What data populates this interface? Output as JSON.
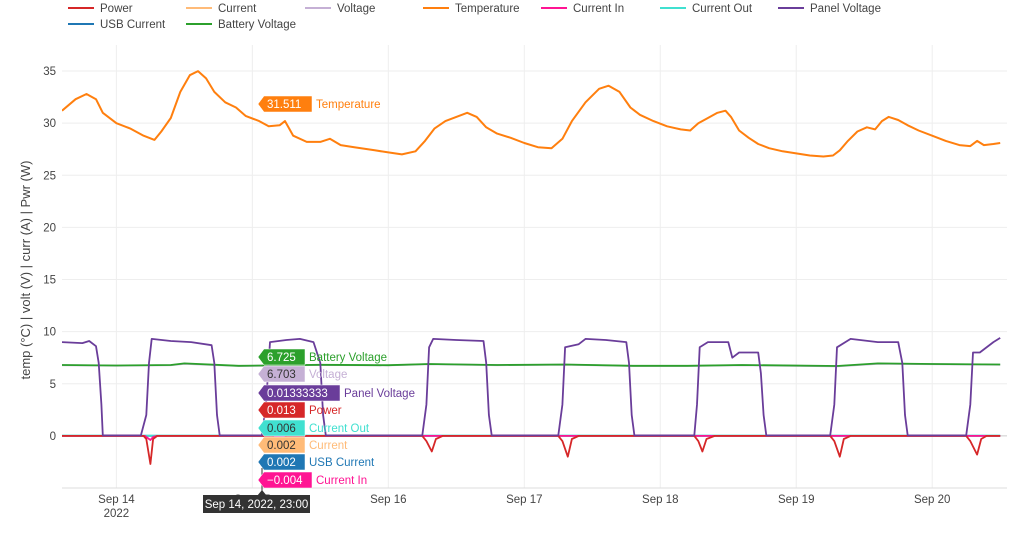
{
  "colors": {
    "power": "#d62728",
    "current": "#ffbb78",
    "voltage": "#c5b0d5",
    "temperature": "#ff7f0e",
    "current_in": "#ff1493",
    "current_out": "#40e0d0",
    "panel_voltage": "#6a3d9a",
    "usb_current": "#1f77b4",
    "battery_voltage": "#2ca02c",
    "grid": "#eeeeee",
    "axis_text": "#444444",
    "tooltip_bg": "#333333"
  },
  "legend": [
    {
      "name": "Power",
      "color": "#d62728"
    },
    {
      "name": "Current",
      "color": "#ffbb78"
    },
    {
      "name": "Voltage",
      "color": "#c5b0d5"
    },
    {
      "name": "Temperature",
      "color": "#ff7f0e"
    },
    {
      "name": "Current In",
      "color": "#ff1493"
    },
    {
      "name": "Current Out",
      "color": "#40e0d0"
    },
    {
      "name": "Panel Voltage",
      "color": "#6a3d9a"
    },
    {
      "name": "USB Current",
      "color": "#1f77b4"
    },
    {
      "name": "Battery Voltage",
      "color": "#2ca02c"
    }
  ],
  "hover": {
    "x_label": "Sep 14, 2022, 23:00",
    "labels": [
      {
        "value": "31.511",
        "name": "Temperature",
        "color": "#ff7f0e",
        "y": 31.511
      },
      {
        "value": "6.725",
        "name": "Battery Voltage",
        "color": "#2ca02c",
        "y": 6.725
      },
      {
        "value": "6.703",
        "name": "Voltage",
        "color": "#c5b0d5",
        "y": 6.703
      },
      {
        "value": "0.01333333",
        "name": "Panel Voltage",
        "color": "#6a3d9a",
        "y": 0.0133
      },
      {
        "value": "0.013",
        "name": "Power",
        "color": "#d62728",
        "y": 0.013
      },
      {
        "value": "0.006",
        "name": "Current Out",
        "color": "#40e0d0",
        "y": 0.006
      },
      {
        "value": "0.002",
        "name": "Current",
        "color": "#ffbb78",
        "y": 0.002
      },
      {
        "value": "0.002",
        "name": "USB Current",
        "color": "#1f77b4",
        "y": 0.002
      },
      {
        "value": "−0.004",
        "name": "Current In",
        "color": "#ff1493",
        "y": -0.004
      }
    ]
  },
  "chart_data": {
    "type": "line",
    "title": "",
    "ylabel": "temp (°C) | volt (V) | curr (A) | Pwr (W)",
    "xlabel": "",
    "x_unit": "days",
    "xlim": [
      13.6,
      20.55
    ],
    "ylim": [
      -5,
      37.5
    ],
    "y_ticks": [
      0,
      5,
      10,
      15,
      20,
      25,
      30,
      35
    ],
    "x_ticks": [
      {
        "x": 14,
        "label": "Sep 14",
        "sub": "2022"
      },
      {
        "x": 15,
        "label": "Sep 15",
        "sub": ""
      },
      {
        "x": 16,
        "label": "Sep 16",
        "sub": ""
      },
      {
        "x": 17,
        "label": "Sep 17",
        "sub": ""
      },
      {
        "x": 18,
        "label": "Sep 18",
        "sub": ""
      },
      {
        "x": 19,
        "label": "Sep 19",
        "sub": ""
      },
      {
        "x": 20,
        "label": "Sep 20",
        "sub": ""
      }
    ],
    "grid": true,
    "legend_position": "top",
    "series": [
      {
        "name": "Temperature",
        "key": "temperature",
        "points": [
          [
            13.6,
            31.2
          ],
          [
            13.7,
            32.3
          ],
          [
            13.78,
            32.8
          ],
          [
            13.85,
            32.3
          ],
          [
            13.9,
            31.0
          ],
          [
            14.0,
            30.0
          ],
          [
            14.1,
            29.5
          ],
          [
            14.2,
            28.8
          ],
          [
            14.28,
            28.4
          ],
          [
            14.33,
            29.2
          ],
          [
            14.4,
            30.5
          ],
          [
            14.47,
            33.0
          ],
          [
            14.54,
            34.6
          ],
          [
            14.6,
            35.0
          ],
          [
            14.66,
            34.3
          ],
          [
            14.72,
            33.0
          ],
          [
            14.8,
            32.0
          ],
          [
            14.88,
            31.5
          ],
          [
            14.95,
            30.7
          ],
          [
            15.05,
            30.2
          ],
          [
            15.12,
            29.7
          ],
          [
            15.2,
            29.8
          ],
          [
            15.24,
            30.2
          ],
          [
            15.3,
            28.8
          ],
          [
            15.4,
            28.2
          ],
          [
            15.5,
            28.2
          ],
          [
            15.57,
            28.5
          ],
          [
            15.65,
            27.9
          ],
          [
            15.75,
            27.7
          ],
          [
            15.9,
            27.4
          ],
          [
            16.0,
            27.2
          ],
          [
            16.1,
            27.0
          ],
          [
            16.2,
            27.3
          ],
          [
            16.27,
            28.3
          ],
          [
            16.34,
            29.5
          ],
          [
            16.42,
            30.2
          ],
          [
            16.5,
            30.6
          ],
          [
            16.58,
            31.0
          ],
          [
            16.65,
            30.6
          ],
          [
            16.72,
            29.6
          ],
          [
            16.8,
            29.0
          ],
          [
            16.9,
            28.6
          ],
          [
            17.0,
            28.1
          ],
          [
            17.1,
            27.7
          ],
          [
            17.2,
            27.6
          ],
          [
            17.28,
            28.5
          ],
          [
            17.35,
            30.2
          ],
          [
            17.45,
            32.0
          ],
          [
            17.55,
            33.3
          ],
          [
            17.62,
            33.6
          ],
          [
            17.7,
            33.0
          ],
          [
            17.78,
            31.5
          ],
          [
            17.85,
            30.8
          ],
          [
            17.95,
            30.2
          ],
          [
            18.05,
            29.7
          ],
          [
            18.15,
            29.4
          ],
          [
            18.22,
            29.3
          ],
          [
            18.28,
            30.0
          ],
          [
            18.35,
            30.5
          ],
          [
            18.42,
            31.0
          ],
          [
            18.48,
            31.2
          ],
          [
            18.52,
            30.6
          ],
          [
            18.58,
            29.3
          ],
          [
            18.65,
            28.6
          ],
          [
            18.72,
            28.0
          ],
          [
            18.8,
            27.6
          ],
          [
            18.9,
            27.3
          ],
          [
            19.0,
            27.1
          ],
          [
            19.1,
            26.9
          ],
          [
            19.2,
            26.8
          ],
          [
            19.27,
            26.9
          ],
          [
            19.32,
            27.4
          ],
          [
            19.38,
            28.3
          ],
          [
            19.45,
            29.2
          ],
          [
            19.52,
            29.6
          ],
          [
            19.58,
            29.4
          ],
          [
            19.63,
            30.2
          ],
          [
            19.68,
            30.6
          ],
          [
            19.75,
            30.3
          ],
          [
            19.82,
            29.8
          ],
          [
            19.9,
            29.3
          ],
          [
            20.0,
            28.8
          ],
          [
            20.1,
            28.3
          ],
          [
            20.2,
            27.9
          ],
          [
            20.28,
            27.8
          ],
          [
            20.33,
            28.3
          ],
          [
            20.38,
            27.9
          ],
          [
            20.45,
            28.0
          ],
          [
            20.5,
            28.1
          ]
        ]
      },
      {
        "name": "Battery Voltage",
        "key": "battery_voltage",
        "points": [
          [
            13.6,
            6.8
          ],
          [
            14.0,
            6.75
          ],
          [
            14.4,
            6.8
          ],
          [
            14.5,
            6.95
          ],
          [
            14.9,
            6.72
          ],
          [
            15.5,
            6.82
          ],
          [
            16.0,
            6.78
          ],
          [
            16.3,
            6.9
          ],
          [
            16.8,
            6.8
          ],
          [
            17.3,
            6.85
          ],
          [
            17.8,
            6.72
          ],
          [
            18.2,
            6.72
          ],
          [
            18.6,
            6.8
          ],
          [
            19.3,
            6.7
          ],
          [
            19.6,
            6.95
          ],
          [
            20.0,
            6.9
          ],
          [
            20.5,
            6.85
          ]
        ]
      },
      {
        "name": "Panel Voltage",
        "key": "panel_voltage",
        "points": [
          [
            13.6,
            9.0
          ],
          [
            13.75,
            8.9
          ],
          [
            13.8,
            9.1
          ],
          [
            13.85,
            8.6
          ],
          [
            13.87,
            7.0
          ],
          [
            13.89,
            3.0
          ],
          [
            13.9,
            0.05
          ],
          [
            14.05,
            0.05
          ],
          [
            14.18,
            0.05
          ],
          [
            14.22,
            2.0
          ],
          [
            14.24,
            7.0
          ],
          [
            14.26,
            9.3
          ],
          [
            14.4,
            9.1
          ],
          [
            14.55,
            9.0
          ],
          [
            14.7,
            8.7
          ],
          [
            14.72,
            7.0
          ],
          [
            14.74,
            2.0
          ],
          [
            14.76,
            0.05
          ],
          [
            14.95,
            0.05
          ],
          [
            15.07,
            0.05
          ],
          [
            15.1,
            3.0
          ],
          [
            15.13,
            9.0
          ],
          [
            15.25,
            9.2
          ],
          [
            15.35,
            9.3
          ],
          [
            15.45,
            9.0
          ],
          [
            15.5,
            7.0
          ],
          [
            15.52,
            2.0
          ],
          [
            15.54,
            0.05
          ],
          [
            15.75,
            0.05
          ],
          [
            16.0,
            0.05
          ],
          [
            16.25,
            0.05
          ],
          [
            16.28,
            3.0
          ],
          [
            16.3,
            8.5
          ],
          [
            16.33,
            9.3
          ],
          [
            16.5,
            9.2
          ],
          [
            16.7,
            9.1
          ],
          [
            16.72,
            7.0
          ],
          [
            16.74,
            2.0
          ],
          [
            16.76,
            0.05
          ],
          [
            17.0,
            0.05
          ],
          [
            17.25,
            0.05
          ],
          [
            17.28,
            3.0
          ],
          [
            17.3,
            8.5
          ],
          [
            17.4,
            8.8
          ],
          [
            17.45,
            9.3
          ],
          [
            17.6,
            9.2
          ],
          [
            17.75,
            9.0
          ],
          [
            17.77,
            7.0
          ],
          [
            17.79,
            2.0
          ],
          [
            17.81,
            0.05
          ],
          [
            18.0,
            0.05
          ],
          [
            18.25,
            0.05
          ],
          [
            18.27,
            3.0
          ],
          [
            18.29,
            8.5
          ],
          [
            18.35,
            9.0
          ],
          [
            18.5,
            9.0
          ],
          [
            18.53,
            7.5
          ],
          [
            18.58,
            8.0
          ],
          [
            18.65,
            8.0
          ],
          [
            18.72,
            8.0
          ],
          [
            18.74,
            6.0
          ],
          [
            18.76,
            2.0
          ],
          [
            18.78,
            0.05
          ],
          [
            19.0,
            0.05
          ],
          [
            19.25,
            0.05
          ],
          [
            19.28,
            3.0
          ],
          [
            19.3,
            8.5
          ],
          [
            19.4,
            9.3
          ],
          [
            19.6,
            9.0
          ],
          [
            19.75,
            9.0
          ],
          [
            19.78,
            7.0
          ],
          [
            19.8,
            2.0
          ],
          [
            19.82,
            0.05
          ],
          [
            20.05,
            0.05
          ],
          [
            20.25,
            0.05
          ],
          [
            20.28,
            3.0
          ],
          [
            20.3,
            8.0
          ],
          [
            20.35,
            8.0
          ],
          [
            20.45,
            9.0
          ],
          [
            20.5,
            9.4
          ]
        ]
      },
      {
        "name": "Voltage",
        "key": "voltage",
        "points": [
          [
            13.6,
            6.78
          ],
          [
            14.0,
            6.73
          ],
          [
            14.4,
            6.78
          ],
          [
            14.5,
            6.92
          ],
          [
            14.9,
            6.7
          ],
          [
            15.5,
            6.8
          ],
          [
            16.0,
            6.76
          ],
          [
            16.3,
            6.88
          ],
          [
            16.8,
            6.78
          ],
          [
            17.3,
            6.83
          ],
          [
            17.8,
            6.7
          ],
          [
            18.2,
            6.7
          ],
          [
            18.6,
            6.78
          ],
          [
            19.3,
            6.68
          ],
          [
            19.6,
            6.92
          ],
          [
            20.0,
            6.88
          ],
          [
            20.5,
            6.83
          ]
        ]
      },
      {
        "name": "Power",
        "key": "power",
        "points": [
          [
            13.6,
            0
          ],
          [
            14.2,
            0
          ],
          [
            14.22,
            -0.3
          ],
          [
            14.25,
            -2.7
          ],
          [
            14.27,
            -0.3
          ],
          [
            14.3,
            0
          ],
          [
            15.15,
            0
          ],
          [
            15.18,
            -1.0
          ],
          [
            15.22,
            -0.5
          ],
          [
            15.25,
            0
          ],
          [
            16.25,
            0
          ],
          [
            16.28,
            -0.5
          ],
          [
            16.32,
            -1.5
          ],
          [
            16.35,
            -0.3
          ],
          [
            16.4,
            0
          ],
          [
            17.25,
            0
          ],
          [
            17.28,
            -0.5
          ],
          [
            17.32,
            -2.0
          ],
          [
            17.35,
            -0.3
          ],
          [
            17.4,
            0
          ],
          [
            18.25,
            0
          ],
          [
            18.28,
            -0.5
          ],
          [
            18.31,
            -1.5
          ],
          [
            18.34,
            -0.3
          ],
          [
            18.4,
            0
          ],
          [
            19.25,
            0
          ],
          [
            19.28,
            -0.5
          ],
          [
            19.32,
            -2.0
          ],
          [
            19.35,
            -0.3
          ],
          [
            19.4,
            0
          ],
          [
            20.25,
            0
          ],
          [
            20.28,
            -0.5
          ],
          [
            20.33,
            -1.8
          ],
          [
            20.36,
            -0.3
          ],
          [
            20.4,
            0
          ],
          [
            20.5,
            0
          ]
        ]
      },
      {
        "name": "Current In",
        "key": "current_in",
        "points": [
          [
            13.6,
            0
          ],
          [
            14.21,
            0
          ],
          [
            14.23,
            -0.2
          ],
          [
            14.25,
            -0.4
          ],
          [
            14.27,
            -0.1
          ],
          [
            14.3,
            0
          ],
          [
            20.5,
            0
          ]
        ]
      },
      {
        "name": "Current Out",
        "key": "current_out",
        "points": [
          [
            13.6,
            0.02
          ],
          [
            20.5,
            0.02
          ]
        ]
      },
      {
        "name": "Current",
        "key": "current",
        "points": [
          [
            13.6,
            0.0
          ],
          [
            20.5,
            0.0
          ]
        ]
      },
      {
        "name": "USB Current",
        "key": "usb_current",
        "points": [
          [
            13.6,
            0.01
          ],
          [
            20.5,
            0.01
          ]
        ]
      }
    ]
  }
}
